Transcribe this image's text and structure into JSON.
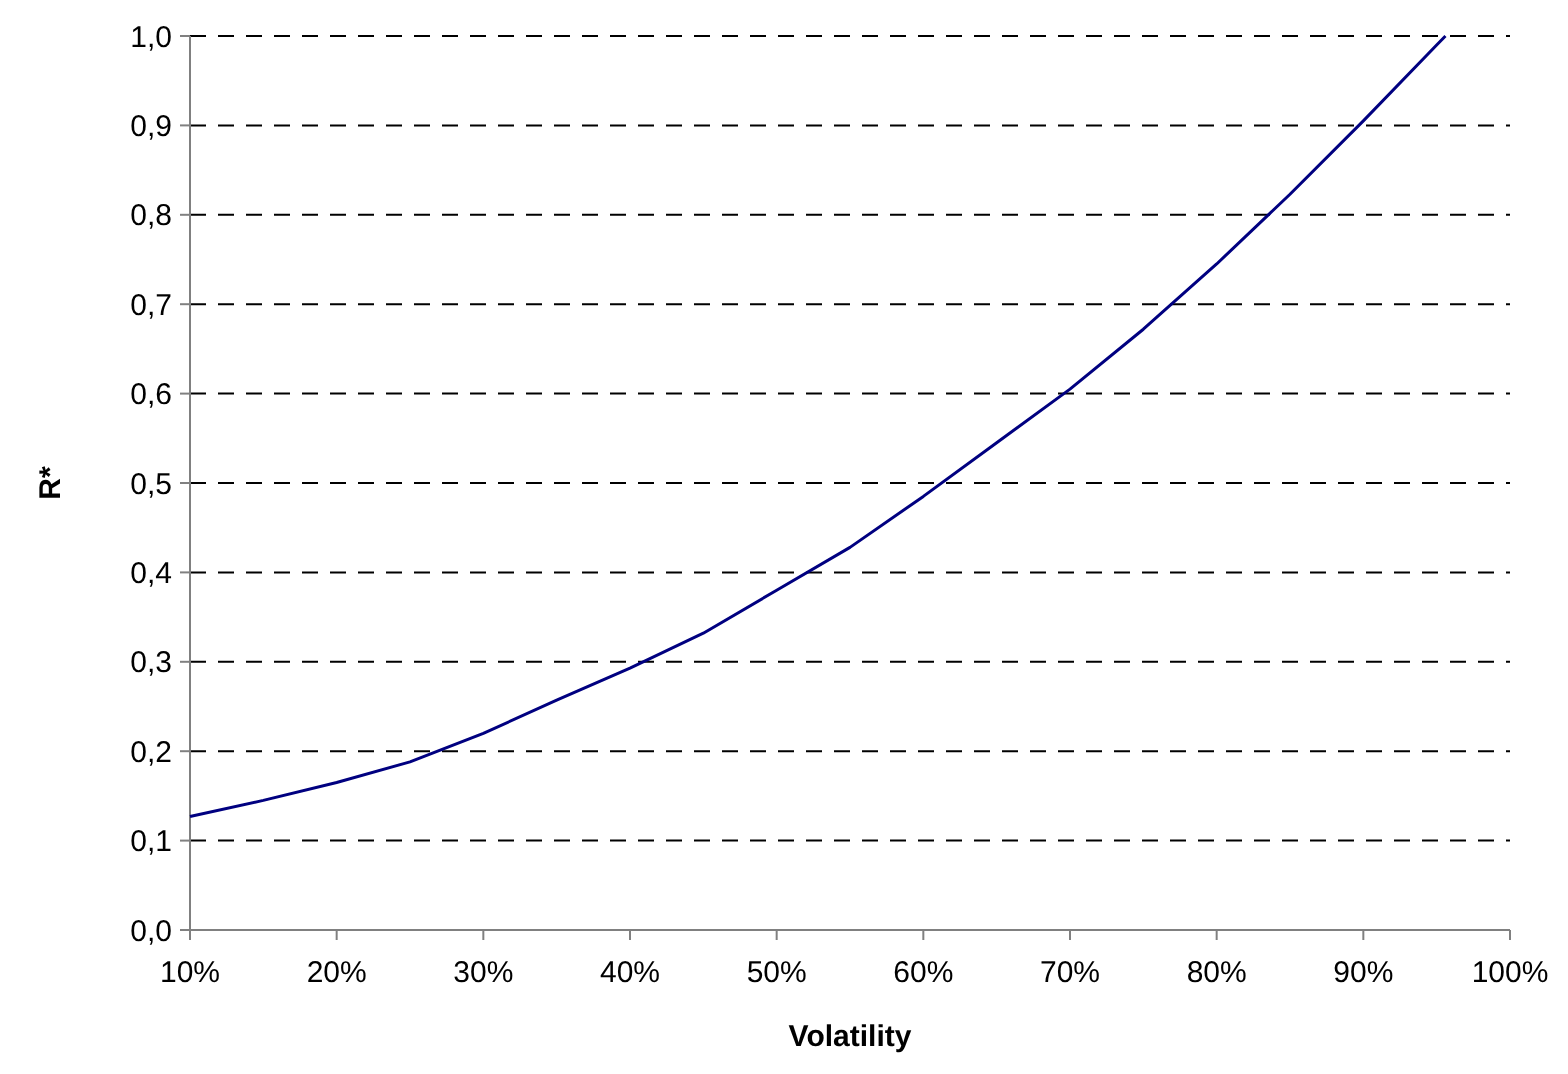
{
  "chart_data": {
    "type": "line",
    "xlabel": "Volatility",
    "ylabel": "R*",
    "x": [
      10,
      15,
      20,
      25,
      30,
      35,
      40,
      45,
      50,
      55,
      60,
      65,
      70,
      75,
      80,
      85,
      90,
      95,
      95.6
    ],
    "series": [
      {
        "color": "#000080",
        "values": [
          0.127,
          0.145,
          0.165,
          0.188,
          0.22,
          0.257,
          0.293,
          0.332,
          0.38,
          0.428,
          0.485,
          0.545,
          0.605,
          0.672,
          0.745,
          0.823,
          0.905,
          0.99,
          1.0
        ]
      }
    ],
    "xlim": [
      10,
      100
    ],
    "xticks": [
      {
        "value": 10,
        "label": "10%"
      },
      {
        "value": 20,
        "label": "20%"
      },
      {
        "value": 30,
        "label": "30%"
      },
      {
        "value": 40,
        "label": "40%"
      },
      {
        "value": 50,
        "label": "50%"
      },
      {
        "value": 60,
        "label": "60%"
      },
      {
        "value": 70,
        "label": "70%"
      },
      {
        "value": 80,
        "label": "80%"
      },
      {
        "value": 90,
        "label": "90%"
      },
      {
        "value": 100,
        "label": "100%"
      }
    ],
    "ylim": [
      0,
      1
    ],
    "yticks": [
      {
        "value": 0,
        "label": "0,0"
      },
      {
        "value": 0.1,
        "label": "0,1"
      },
      {
        "value": 0.2,
        "label": "0,2"
      },
      {
        "value": 0.3,
        "label": "0,3"
      },
      {
        "value": 0.4,
        "label": "0,4"
      },
      {
        "value": 0.5,
        "label": "0,5"
      },
      {
        "value": 0.6,
        "label": "0,6"
      },
      {
        "value": 0.7,
        "label": "0,7"
      },
      {
        "value": 0.8,
        "label": "0,8"
      },
      {
        "value": 0.9,
        "label": "0,9"
      },
      {
        "value": 1,
        "label": "1,0"
      }
    ],
    "grid": "y",
    "marker": "none",
    "line_style": "solid"
  }
}
